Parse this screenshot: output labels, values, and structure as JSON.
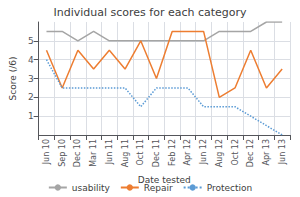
{
  "chart_data": {
    "type": "line",
    "title": "Individual scores for each category",
    "xlabel": "Date tested",
    "ylabel": "Score (/6)",
    "categories": [
      "Jun 10",
      "Sep 10",
      "Dec 10",
      "Mar 11",
      "Jun 11",
      "Aug 11",
      "Oct 11",
      "Dec 11",
      "Feb 12",
      "Apr 12",
      "Jun 12",
      "Aug 12",
      "Oct 12",
      "Dec 12",
      "Apr 13",
      "Jun 13"
    ],
    "series": [
      {
        "name": "usability",
        "color": "#a5a5a5",
        "values": [
          5.5,
          5.5,
          5.0,
          5.5,
          5.0,
          5.0,
          5.0,
          5.0,
          5.0,
          5.0,
          5.0,
          5.5,
          5.5,
          5.5,
          6.0,
          6.0
        ]
      },
      {
        "name": "Repair",
        "color": "#ed7d31",
        "values": [
          4.5,
          2.5,
          4.5,
          3.5,
          4.5,
          3.5,
          5.0,
          3.0,
          5.5,
          5.5,
          5.5,
          2.0,
          2.5,
          4.5,
          2.5,
          3.5
        ]
      },
      {
        "name": "Protection",
        "color": "#5b9bd5",
        "line_style": "dotted",
        "values": [
          4.0,
          2.5,
          2.5,
          2.5,
          2.5,
          2.5,
          1.5,
          2.5,
          2.5,
          2.5,
          1.5,
          1.5,
          1.5,
          1.0,
          0.5,
          0.0
        ]
      }
    ],
    "ylim": [
      0,
      6
    ],
    "yticks": [
      1,
      2,
      3,
      4,
      5
    ],
    "grid": true,
    "legend": "bottom"
  }
}
